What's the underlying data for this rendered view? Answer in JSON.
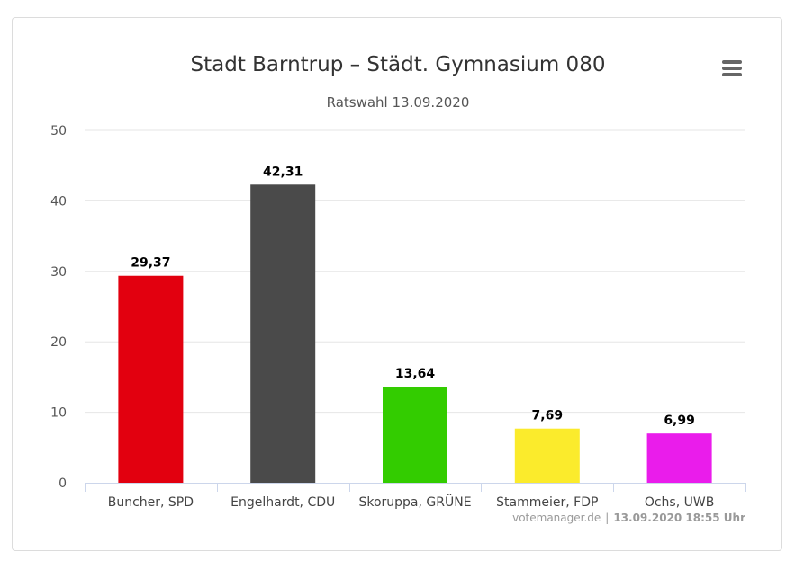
{
  "chart_data": {
    "type": "bar",
    "title": "Stadt Barntrup – Städt. Gymnasium 080",
    "subtitle": "Ratswahl 13.09.2020",
    "categories": [
      "Buncher, SPD",
      "Engelhardt, CDU",
      "Skoruppa, GRÜNE",
      "Stammeier, FDP",
      "Ochs, UWB"
    ],
    "values": [
      29.37,
      42.31,
      13.64,
      7.69,
      6.99
    ],
    "value_labels": [
      "29,37",
      "42,31",
      "13,64",
      "7,69",
      "6,99"
    ],
    "colors": [
      "#e2000f",
      "#4a4a4a",
      "#33cc00",
      "#fbeb2c",
      "#ea1ceb"
    ],
    "ylim": [
      0,
      50
    ],
    "yticks": [
      "0",
      "10",
      "20",
      "30",
      "40",
      "50"
    ],
    "xlabel": "",
    "ylabel": "",
    "grid": true,
    "legend": "none"
  },
  "credits": {
    "source": "votemanager.de",
    "separator": "|",
    "timestamp": "13.09.2020 18:55 Uhr"
  },
  "menu": {
    "icon": "hamburger-menu-icon"
  }
}
